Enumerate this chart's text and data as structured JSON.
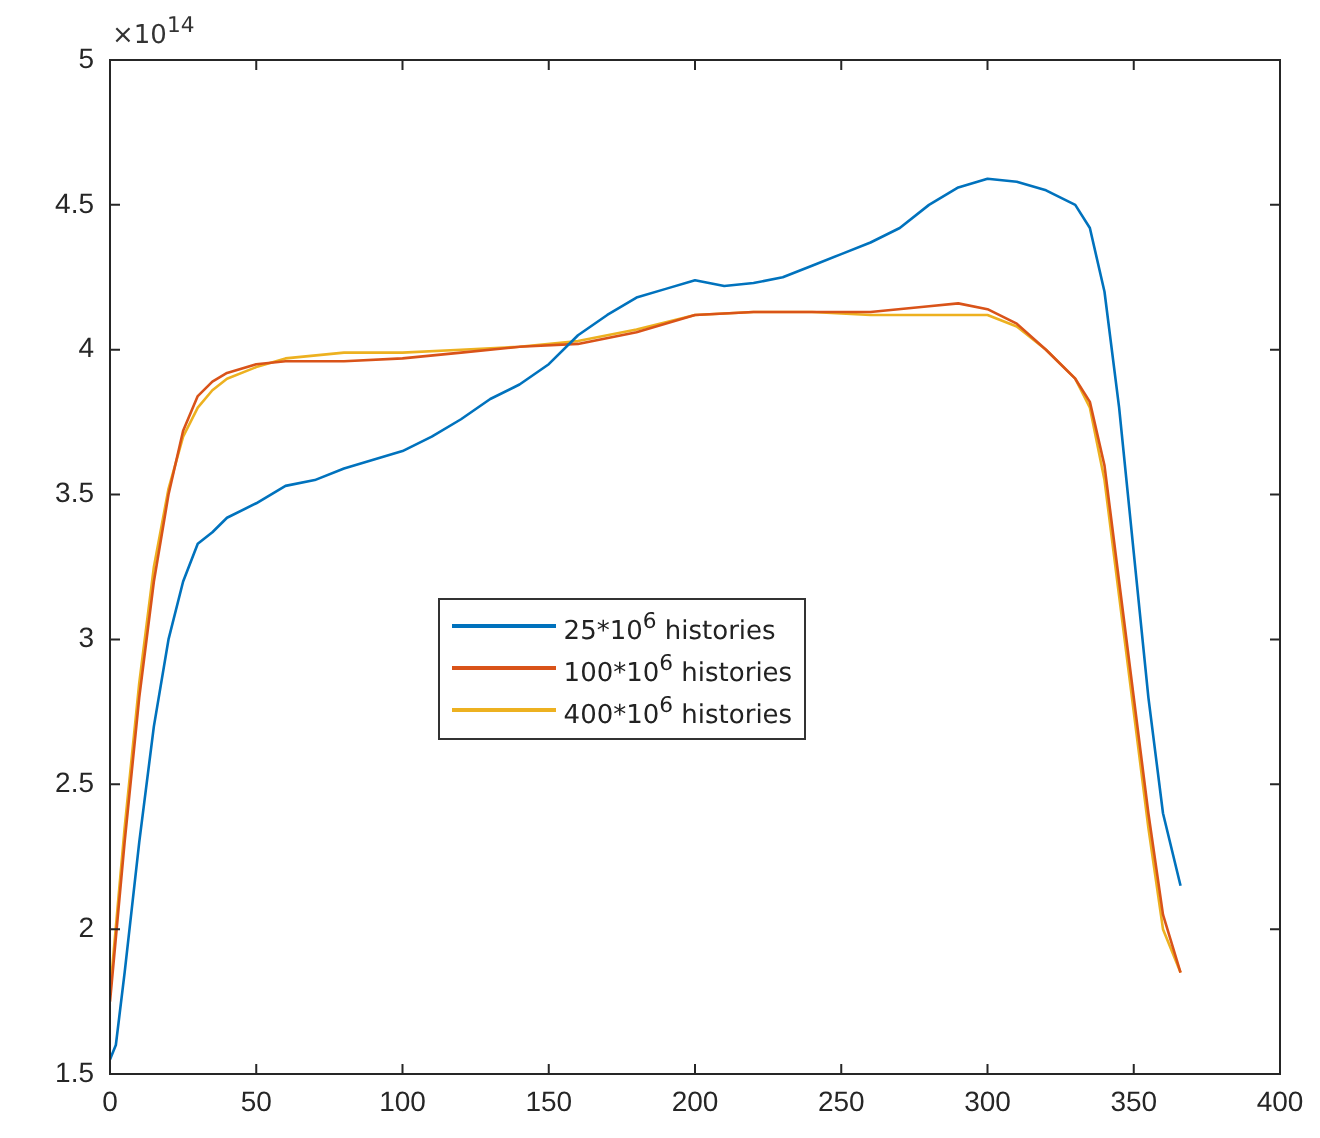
{
  "chart_data": {
    "type": "line",
    "annotations": [
      "×10$^{14}$"
    ],
    "legend": "center",
    "grid": false,
    "marker": "none",
    "line_style": "solid",
    "xlim": [
      0,
      400
    ],
    "xticks": [
      0,
      50,
      100,
      150,
      200,
      250,
      300,
      350,
      400
    ],
    "ylim": [
      1.5,
      5
    ],
    "yticks": [
      1.5,
      2,
      2.5,
      3,
      3.5,
      4,
      4.5,
      5
    ],
    "series": [
      {
        "name": "25*10$^{6}$ histories",
        "color": "#0072bd",
        "x": [
          0,
          2,
          5,
          10,
          15,
          20,
          25,
          30,
          35,
          40,
          50,
          60,
          70,
          80,
          90,
          100,
          110,
          120,
          130,
          140,
          150,
          160,
          170,
          180,
          190,
          200,
          210,
          220,
          230,
          240,
          250,
          260,
          270,
          280,
          290,
          300,
          310,
          320,
          330,
          335,
          340,
          345,
          350,
          355,
          360,
          366
        ],
        "values": [
          1.55,
          1.6,
          1.85,
          2.3,
          2.7,
          3.0,
          3.2,
          3.33,
          3.37,
          3.42,
          3.47,
          3.53,
          3.55,
          3.59,
          3.62,
          3.65,
          3.7,
          3.76,
          3.83,
          3.88,
          3.95,
          4.05,
          4.12,
          4.18,
          4.21,
          4.24,
          4.22,
          4.23,
          4.25,
          4.29,
          4.33,
          4.37,
          4.42,
          4.5,
          4.56,
          4.59,
          4.58,
          4.55,
          4.5,
          4.42,
          4.2,
          3.8,
          3.3,
          2.8,
          2.4,
          2.15
        ]
      },
      {
        "name": "100*10$^{6}$ histories",
        "color": "#d95319",
        "x": [
          0,
          5,
          10,
          15,
          20,
          25,
          30,
          35,
          40,
          50,
          60,
          80,
          100,
          120,
          140,
          160,
          180,
          200,
          220,
          240,
          260,
          280,
          290,
          300,
          310,
          320,
          330,
          335,
          340,
          345,
          350,
          355,
          360,
          366
        ],
        "values": [
          1.75,
          2.3,
          2.8,
          3.2,
          3.5,
          3.72,
          3.84,
          3.89,
          3.92,
          3.95,
          3.96,
          3.96,
          3.97,
          3.99,
          4.01,
          4.02,
          4.06,
          4.12,
          4.13,
          4.13,
          4.13,
          4.15,
          4.16,
          4.14,
          4.09,
          4.0,
          3.9,
          3.82,
          3.6,
          3.2,
          2.8,
          2.4,
          2.05,
          1.85
        ]
      },
      {
        "name": "400*10$^{6}$ histories",
        "color": "#edb120",
        "x": [
          0,
          5,
          10,
          15,
          20,
          25,
          30,
          35,
          40,
          50,
          60,
          80,
          100,
          120,
          140,
          160,
          180,
          200,
          220,
          240,
          260,
          280,
          300,
          310,
          320,
          330,
          335,
          340,
          345,
          350,
          355,
          360,
          366
        ],
        "values": [
          1.78,
          2.35,
          2.85,
          3.25,
          3.52,
          3.7,
          3.8,
          3.86,
          3.9,
          3.94,
          3.97,
          3.99,
          3.99,
          4.0,
          4.01,
          4.03,
          4.07,
          4.12,
          4.13,
          4.13,
          4.12,
          4.12,
          4.12,
          4.08,
          4.0,
          3.9,
          3.8,
          3.55,
          3.15,
          2.75,
          2.35,
          2.0,
          1.85
        ]
      }
    ]
  }
}
